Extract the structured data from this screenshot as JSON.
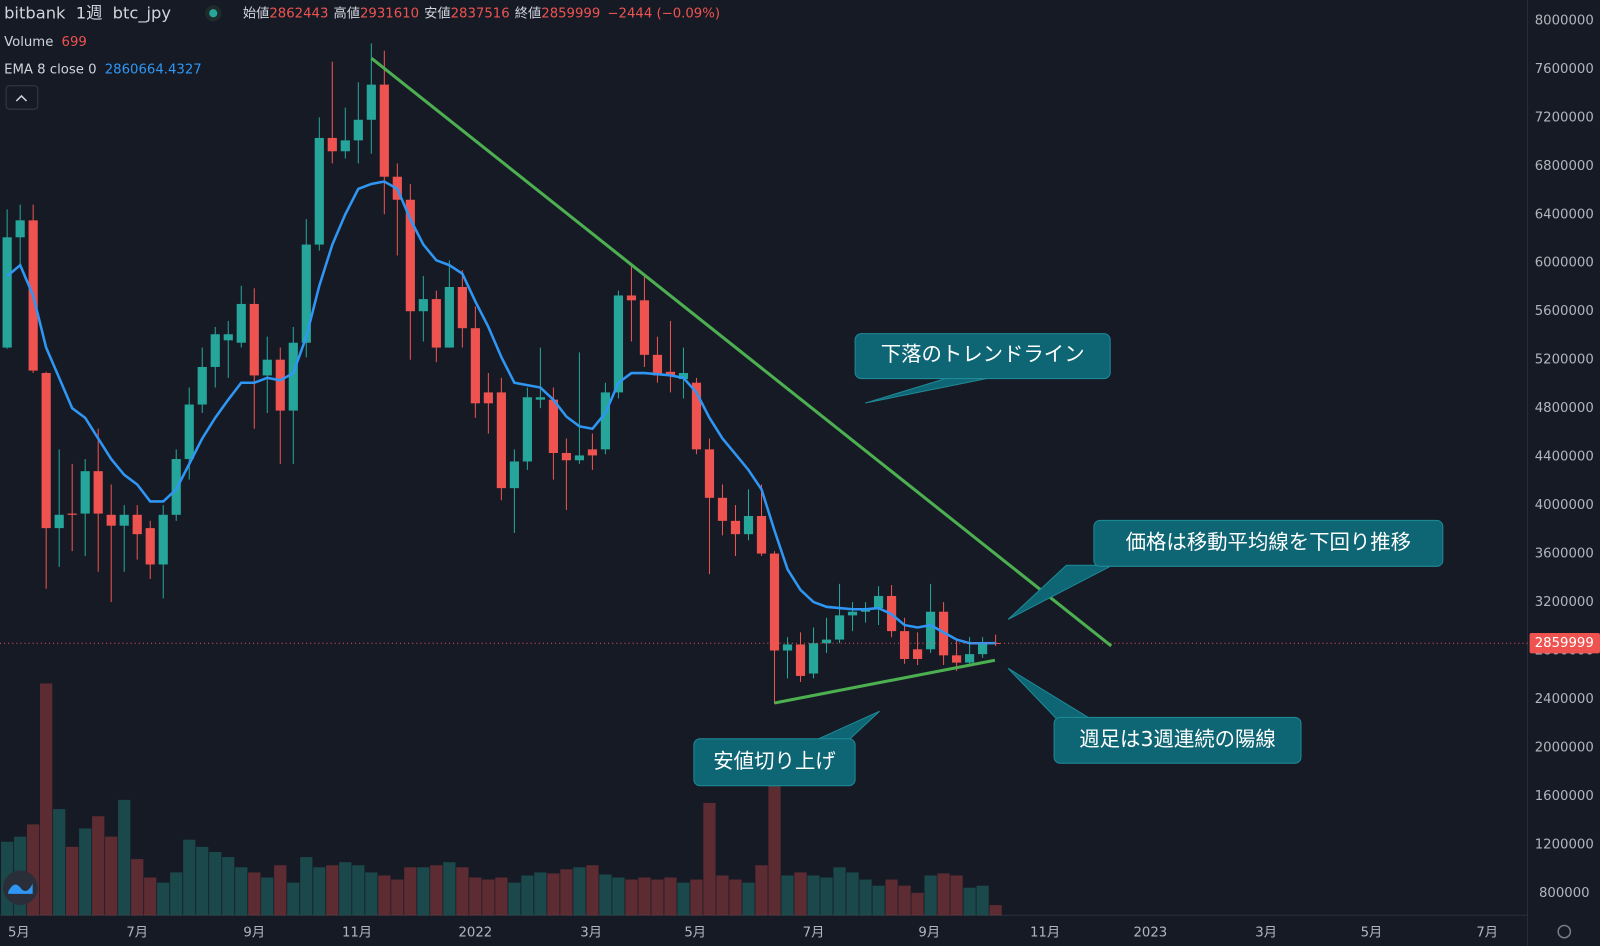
{
  "header": {
    "exchange": "bitbank",
    "interval": "1週",
    "symbol": "btc_jpy",
    "open_label": "始値",
    "high_label": "高値",
    "low_label": "安値",
    "close_label": "終値",
    "change": "−2444 (−0.09%)"
  },
  "chart_data": {
    "type": "candlestick",
    "x": [
      0,
      1,
      2,
      3,
      4,
      5,
      6,
      7,
      8,
      9,
      10,
      11,
      12,
      13,
      14,
      15,
      16,
      17,
      18,
      19,
      20,
      21,
      22,
      23,
      24,
      25,
      26,
      27,
      28,
      29,
      30,
      31,
      32,
      33,
      34,
      35,
      36,
      37,
      38,
      39,
      40,
      41,
      42,
      43,
      44,
      45,
      46,
      47,
      48,
      49,
      50,
      51,
      52,
      53,
      54,
      55,
      56,
      57,
      58,
      59,
      60,
      61,
      62,
      63,
      64,
      65,
      66,
      67,
      68,
      69,
      70,
      71,
      72,
      73,
      74,
      75,
      76
    ],
    "open": [
      5300000,
      6210000,
      6350000,
      5090000,
      3810000,
      3930000,
      3930000,
      4280000,
      3920000,
      3830000,
      3920000,
      3810000,
      3510000,
      3920000,
      4380000,
      4830000,
      5140000,
      5360000,
      5340000,
      5660000,
      5070000,
      5200000,
      4780000,
      5340000,
      6150000,
      7030000,
      6920000,
      7010000,
      7180000,
      7470000,
      6710000,
      6520000,
      5600000,
      5700000,
      5300000,
      5800000,
      5460000,
      4930000,
      4930000,
      4140000,
      4360000,
      4870000,
      4870000,
      4430000,
      4370000,
      4460000,
      4460000,
      4930000,
      5730000,
      5690000,
      5240000,
      5100000,
      5040000,
      5010000,
      4460000,
      4060000,
      3870000,
      3760000,
      3910000,
      3600000,
      2800000,
      2850000,
      2610000,
      2860000,
      2890000,
      3090000,
      3120000,
      3150000,
      3250000,
      2960000,
      2810000,
      2810000,
      3120000,
      2760000,
      2700000,
      2770000,
      2862443
    ],
    "high": [
      6440000,
      6480000,
      6480000,
      5100000,
      4460000,
      4340000,
      4380000,
      4630000,
      4170000,
      4000000,
      4000000,
      3870000,
      4000000,
      4460000,
      4970000,
      5300000,
      5470000,
      5520000,
      5810000,
      5790000,
      5390000,
      5300000,
      5470000,
      6360000,
      7200000,
      7660000,
      7280000,
      7490000,
      7810000,
      7750000,
      6820000,
      6650000,
      5890000,
      5770000,
      6020000,
      5940000,
      5640000,
      5090000,
      5050000,
      4460000,
      4970000,
      5300000,
      4970000,
      4550000,
      5260000,
      4590000,
      5010000,
      5770000,
      5980000,
      5890000,
      5390000,
      5520000,
      5300000,
      5050000,
      4550000,
      4170000,
      4000000,
      4130000,
      4170000,
      3620000,
      2910000,
      2950000,
      2990000,
      3070000,
      3350000,
      3200000,
      3200000,
      3330000,
      3340000,
      3070000,
      2950000,
      3350000,
      3200000,
      2890000,
      2910000,
      2910000,
      2931610
    ],
    "low": [
      5290000,
      5980000,
      5090000,
      3310000,
      3490000,
      3620000,
      3580000,
      3450000,
      3200000,
      3450000,
      3550000,
      3390000,
      3230000,
      3870000,
      4210000,
      4760000,
      4970000,
      5050000,
      5300000,
      4630000,
      4760000,
      4340000,
      4340000,
      5220000,
      6100000,
      6820000,
      6860000,
      6820000,
      6900000,
      6400000,
      6060000,
      5200000,
      5350000,
      5180000,
      5300000,
      5300000,
      4720000,
      4590000,
      4040000,
      3770000,
      4290000,
      4800000,
      4210000,
      3960000,
      4340000,
      4290000,
      4420000,
      4880000,
      5350000,
      5140000,
      5010000,
      4930000,
      4880000,
      4420000,
      3430000,
      3750000,
      3580000,
      3710000,
      3580000,
      2360000,
      2570000,
      2540000,
      2570000,
      2780000,
      2860000,
      2960000,
      3030000,
      3010000,
      2910000,
      2690000,
      2680000,
      2780000,
      2680000,
      2630000,
      2690000,
      2740000,
      2837516
    ],
    "close": [
      6210000,
      6350000,
      5110000,
      3810000,
      3920000,
      3920000,
      4280000,
      3930000,
      3830000,
      3920000,
      3760000,
      3510000,
      3920000,
      4380000,
      4830000,
      5140000,
      5410000,
      5410000,
      5660000,
      5070000,
      5200000,
      4780000,
      5340000,
      6150000,
      7030000,
      6920000,
      7010000,
      7180000,
      7470000,
      6710000,
      6520000,
      5600000,
      5700000,
      5300000,
      5800000,
      5460000,
      4840000,
      4840000,
      4140000,
      4360000,
      4890000,
      4890000,
      4430000,
      4370000,
      4410000,
      4410000,
      4930000,
      5730000,
      5690000,
      5240000,
      5070000,
      5070000,
      5090000,
      4460000,
      4060000,
      3870000,
      3760000,
      3910000,
      3600000,
      2800000,
      2850000,
      2590000,
      2860000,
      2890000,
      3090000,
      3120000,
      3150000,
      3250000,
      2960000,
      2730000,
      2730000,
      3120000,
      2760000,
      2700000,
      2770000,
      2862443,
      2859999
    ],
    "up_color": "#26a69a",
    "down_color": "#ef5350",
    "volume": {
      "name": "Volume",
      "values": [
        5040,
        5390,
        6230,
        15890,
        7280,
        4690,
        5950,
        6790,
        5390,
        7910,
        3850,
        2590,
        2240,
        2940,
        5180,
        4690,
        4340,
        3990,
        3290,
        2940,
        2590,
        3430,
        2240,
        3990,
        3290,
        3430,
        3640,
        3430,
        2940,
        2730,
        2450,
        3290,
        3290,
        3430,
        3640,
        3290,
        2590,
        2450,
        2590,
        2240,
        2730,
        2940,
        2870,
        3150,
        3290,
        3430,
        2800,
        2590,
        2450,
        2590,
        2450,
        2590,
        2240,
        2450,
        7700,
        2730,
        2450,
        2240,
        3430,
        9590,
        2730,
        2940,
        2730,
        2590,
        3290,
        2940,
        2450,
        2030,
        2450,
        2030,
        1540,
        2730,
        2870,
        2730,
        1890,
        2030,
        699
      ]
    },
    "ema": {
      "name": "EMA 8 close 0",
      "color": "#2f96f3",
      "values": [
        5890000,
        5980000,
        5730000,
        5300000,
        5050000,
        4800000,
        4720000,
        4550000,
        4380000,
        4250000,
        4170000,
        4030000,
        4030000,
        4130000,
        4340000,
        4550000,
        4720000,
        4870000,
        5010000,
        5010000,
        5050000,
        5030000,
        5090000,
        5390000,
        5810000,
        6150000,
        6400000,
        6610000,
        6650000,
        6670000,
        6610000,
        6360000,
        6150000,
        6020000,
        5980000,
        5910000,
        5680000,
        5470000,
        5220000,
        5010000,
        4990000,
        4970000,
        4870000,
        4730000,
        4650000,
        4630000,
        4760000,
        5010000,
        5090000,
        5090000,
        5080000,
        5070000,
        5050000,
        4930000,
        4720000,
        4550000,
        4420000,
        4290000,
        4130000,
        3790000,
        3470000,
        3300000,
        3200000,
        3160000,
        3150000,
        3140000,
        3140000,
        3150000,
        3100000,
        3010000,
        2990000,
        3010000,
        2950000,
        2890000,
        2860000,
        2860000,
        2860664.4327
      ]
    },
    "xlim": [
      -0.55,
      116.9
    ],
    "xticks": [
      {
        "value": 0.9,
        "label": "5月"
      },
      {
        "value": 10,
        "label": "7月"
      },
      {
        "value": 19,
        "label": "9月"
      },
      {
        "value": 26.9,
        "label": "11月"
      },
      {
        "value": 36,
        "label": "2022"
      },
      {
        "value": 44.9,
        "label": "3月"
      },
      {
        "value": 52.9,
        "label": "5月"
      },
      {
        "value": 62,
        "label": "7月"
      },
      {
        "value": 70.9,
        "label": "9月"
      },
      {
        "value": 79.8,
        "label": "11月"
      },
      {
        "value": 87.9,
        "label": "2023"
      },
      {
        "value": 96.8,
        "label": "3月"
      },
      {
        "value": 104.9,
        "label": "5月"
      },
      {
        "value": 113.8,
        "label": "7月"
      }
    ],
    "ylim": [
      614700,
      8168400
    ],
    "yticks": [
      800000,
      1200000,
      1600000,
      2000000,
      2400000,
      2800000,
      3200000,
      3600000,
      4000000,
      4400000,
      4800000,
      5200000,
      5600000,
      6000000,
      6400000,
      6800000,
      7200000,
      7600000,
      8000000
    ],
    "grid": false,
    "annotations": [
      "下落のトレンドライン",
      "価格は移動平均線を下回り推移",
      "安値切り上げ",
      "週足は3週連続の陽線"
    ]
  }
}
